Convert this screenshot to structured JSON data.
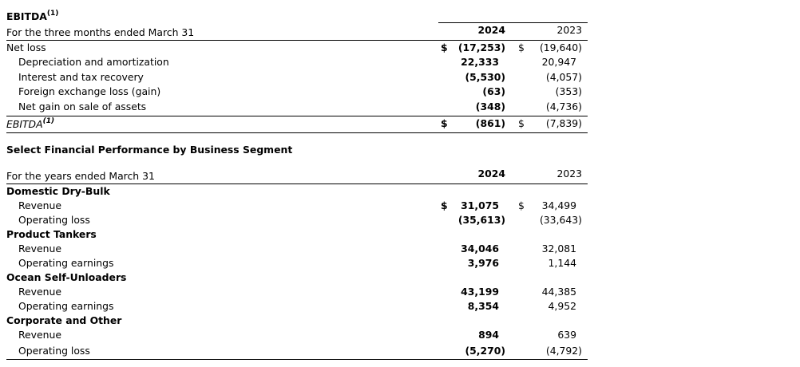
{
  "ebitda": {
    "title": "EBITDA",
    "footnote": "(1)",
    "period_label": "For the three months ended March 31",
    "col_2024": "2024",
    "col_2023": "2023",
    "rows": [
      {
        "label": "Net loss",
        "d1": "$",
        "v2024": "(17,253)",
        "d2": "$",
        "v2023": "(19,640)",
        "indent": false
      },
      {
        "label": "Depreciation and amortization",
        "d1": "",
        "v2024": "22,333",
        "d2": "",
        "v2023": "20,947",
        "indent": true
      },
      {
        "label": "Interest and tax recovery",
        "d1": "",
        "v2024": "(5,530)",
        "d2": "",
        "v2023": "(4,057)",
        "indent": true
      },
      {
        "label": "Foreign exchange loss (gain)",
        "d1": "",
        "v2024": "(63)",
        "d2": "",
        "v2023": "(353)",
        "indent": true
      },
      {
        "label": "Net gain on sale of assets",
        "d1": "",
        "v2024": "(348)",
        "d2": "",
        "v2023": "(4,736)",
        "indent": true
      }
    ],
    "total": {
      "label": "EBITDA",
      "footnote": "(1)",
      "d1": "$",
      "v2024": "(861)",
      "d2": "$",
      "v2023": "(7,839)"
    }
  },
  "segments": {
    "title": "Select Financial Performance by Business Segment",
    "period_label": "For the years ended March 31",
    "col_2024": "2024",
    "col_2023": "2023",
    "groups": [
      {
        "name": "Domestic Dry-Bulk",
        "rows": [
          {
            "label": "Revenue",
            "d1": "$",
            "v2024": "31,075",
            "d2": "$",
            "v2023": "34,499"
          },
          {
            "label": "Operating loss",
            "d1": "",
            "v2024": "(35,613)",
            "d2": "",
            "v2023": "(33,643)"
          }
        ]
      },
      {
        "name": "Product Tankers",
        "rows": [
          {
            "label": "Revenue",
            "d1": "",
            "v2024": "34,046",
            "d2": "",
            "v2023": "32,081"
          },
          {
            "label": "Operating earnings",
            "d1": "",
            "v2024": "3,976",
            "d2": "",
            "v2023": "1,144"
          }
        ]
      },
      {
        "name": "Ocean Self-Unloaders",
        "rows": [
          {
            "label": "Revenue",
            "d1": "",
            "v2024": "43,199",
            "d2": "",
            "v2023": "44,385"
          },
          {
            "label": "Operating earnings",
            "d1": "",
            "v2024": "8,354",
            "d2": "",
            "v2023": "4,952"
          }
        ]
      },
      {
        "name": "Corporate and Other",
        "rows": [
          {
            "label": "Revenue",
            "d1": "",
            "v2024": "894",
            "d2": "",
            "v2023": "639"
          },
          {
            "label": "Operating loss",
            "d1": "",
            "v2024": "(5,270)",
            "d2": "",
            "v2023": "(4,792)"
          }
        ]
      }
    ]
  }
}
